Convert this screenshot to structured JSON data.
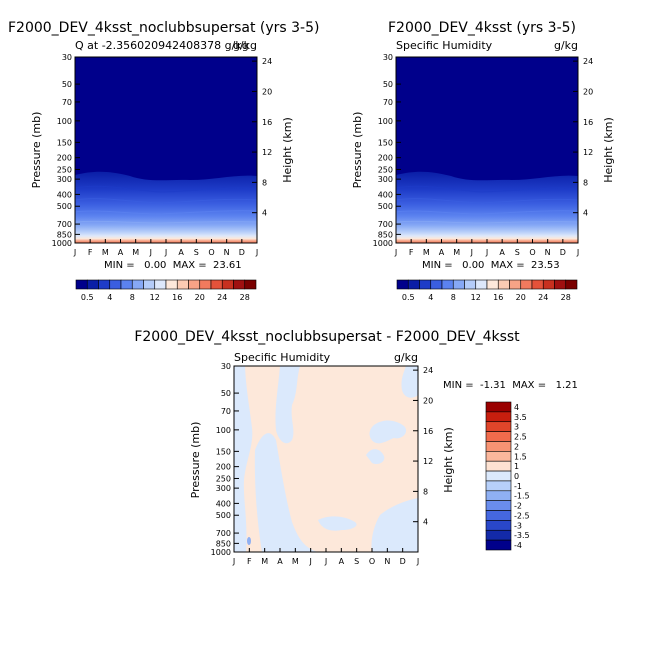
{
  "chart_data": [
    {
      "type": "heatmap",
      "title": "F2000_DEV_4ksst_noclubbsupersat (yrs 3-5)",
      "subtitle_left": "Q at -2.356020942408378 g/kg",
      "subtitle_right": "g/kg",
      "ylabel": "Pressure (mb)",
      "ylabel_right": "Height (km)",
      "x_ticks": [
        "J",
        "F",
        "M",
        "A",
        "M",
        "J",
        "J",
        "A",
        "S",
        "O",
        "N",
        "D",
        "J"
      ],
      "y_ticks": [
        "30",
        "50",
        "70",
        "100",
        "150",
        "200",
        "250",
        "300",
        "400",
        "500",
        "700",
        "850",
        "1000"
      ],
      "y_ticks_right": [
        "24",
        "20",
        "16",
        "12",
        "8",
        "4"
      ],
      "stats": "MIN =   0.00  MAX =  23.61",
      "min": 0.0,
      "max": 23.61,
      "colorbar": [
        "0.5",
        "4",
        "8",
        "12",
        "16",
        "20",
        "24",
        "28"
      ]
    },
    {
      "type": "heatmap",
      "title": "F2000_DEV_4ksst (yrs 3-5)",
      "subtitle_left": "Specific Humidity",
      "subtitle_right": "g/kg",
      "ylabel": "Pressure (mb)",
      "ylabel_right": "Height (km)",
      "x_ticks": [
        "J",
        "F",
        "M",
        "A",
        "M",
        "J",
        "J",
        "A",
        "S",
        "O",
        "N",
        "D",
        "J"
      ],
      "y_ticks": [
        "30",
        "50",
        "70",
        "100",
        "150",
        "200",
        "250",
        "300",
        "400",
        "500",
        "700",
        "850",
        "1000"
      ],
      "y_ticks_right": [
        "24",
        "20",
        "16",
        "12",
        "8",
        "4"
      ],
      "stats": "MIN =   0.00  MAX =  23.53",
      "min": 0.0,
      "max": 23.53,
      "colorbar": [
        "0.5",
        "4",
        "8",
        "12",
        "16",
        "20",
        "24",
        "28"
      ]
    },
    {
      "type": "heatmap",
      "title": "F2000_DEV_4ksst_noclubbsupersat - F2000_DEV_4ksst",
      "subtitle_left": "Specific Humidity",
      "subtitle_right": "g/kg",
      "ylabel": "Pressure (mb)",
      "ylabel_right": "Height (km)",
      "x_ticks": [
        "J",
        "F",
        "M",
        "A",
        "M",
        "J",
        "J",
        "A",
        "S",
        "O",
        "N",
        "D",
        "J"
      ],
      "y_ticks": [
        "30",
        "50",
        "70",
        "100",
        "150",
        "200",
        "250",
        "300",
        "400",
        "500",
        "700",
        "850",
        "1000"
      ],
      "y_ticks_right": [
        "24",
        "20",
        "16",
        "12",
        "8",
        "4"
      ],
      "stats": "MIN =  -1.31  MAX =   1.21",
      "min": -1.31,
      "max": 1.21,
      "colorbar": [
        "4",
        "3.5",
        "3",
        "2.5",
        "2",
        "1.5",
        "1",
        "0",
        "-1",
        "-1.5",
        "-2",
        "-2.5",
        "-3",
        "-3.5",
        "-4"
      ]
    }
  ],
  "colors": {
    "abs_scale": [
      "#00008b",
      "#0a1ea6",
      "#1e3cc8",
      "#3a5ee0",
      "#5b82ef",
      "#86a8f5",
      "#b4ccf9",
      "#dde8fb",
      "#fde8da",
      "#fbcbb3",
      "#f7a386",
      "#f17a5e",
      "#e4523a",
      "#c8301f",
      "#a01010",
      "#7a0000"
    ],
    "diff_scale": [
      "#9a0000",
      "#c81e0e",
      "#e0452a",
      "#f06b4c",
      "#f79373",
      "#fbb79c",
      "#fde2d2",
      "#dbe9fc",
      "#b7d0fa",
      "#8fb0f3",
      "#6a8ded",
      "#4567e0",
      "#2947c9",
      "#132aa8",
      "#00008b"
    ]
  }
}
